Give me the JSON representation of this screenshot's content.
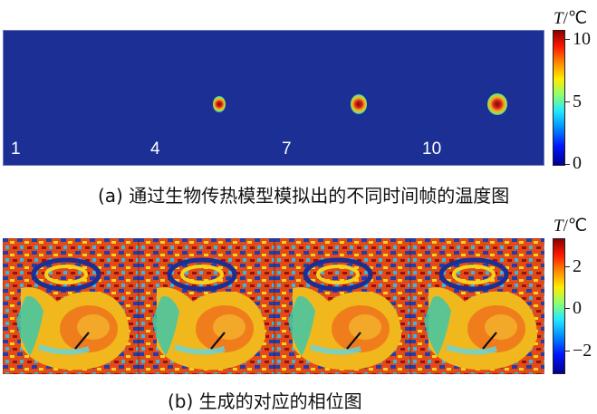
{
  "panel_a": {
    "frame_labels": [
      "1",
      "4",
      "7",
      "10"
    ],
    "colorbar": {
      "unit_symbol": "T",
      "unit_suffix": "/℃",
      "ticks": [
        "10",
        "5",
        "0"
      ],
      "range": [
        0,
        10
      ]
    },
    "caption": "(a) 通过生物传热模型模拟出的不同时间帧的温度图"
  },
  "panel_b": {
    "colorbar": {
      "unit_symbol": "T",
      "unit_suffix": "/℃",
      "ticks": [
        "2",
        "0",
        "−2"
      ],
      "range": [
        -3,
        3
      ]
    },
    "caption": "(b) 生成的对应的相位图"
  },
  "colors": {
    "background_cold": "#1b2f95",
    "hot": "#d31b1b"
  }
}
